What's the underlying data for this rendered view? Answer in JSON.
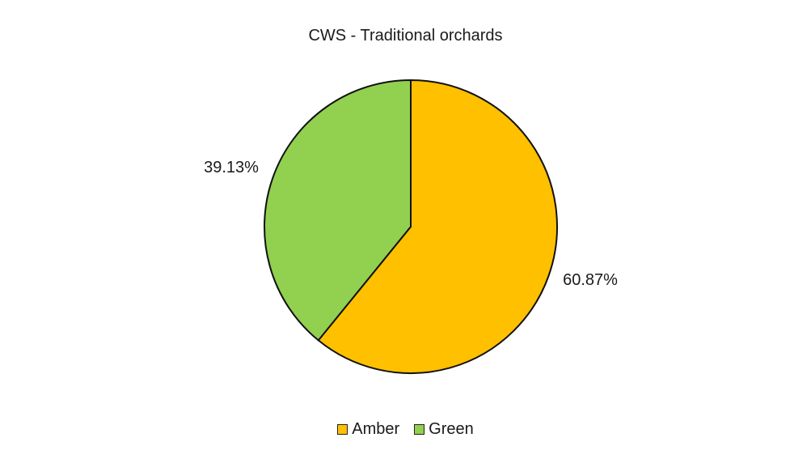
{
  "chart_data": {
    "type": "pie",
    "title": "CWS - Traditional orchards",
    "categories": [
      "Amber",
      "Green"
    ],
    "values": [
      60.87,
      39.13
    ],
    "labels": [
      "60.87%",
      "39.13%"
    ],
    "colors": [
      "#FFC000",
      "#92D050"
    ],
    "legend_position": "bottom"
  }
}
